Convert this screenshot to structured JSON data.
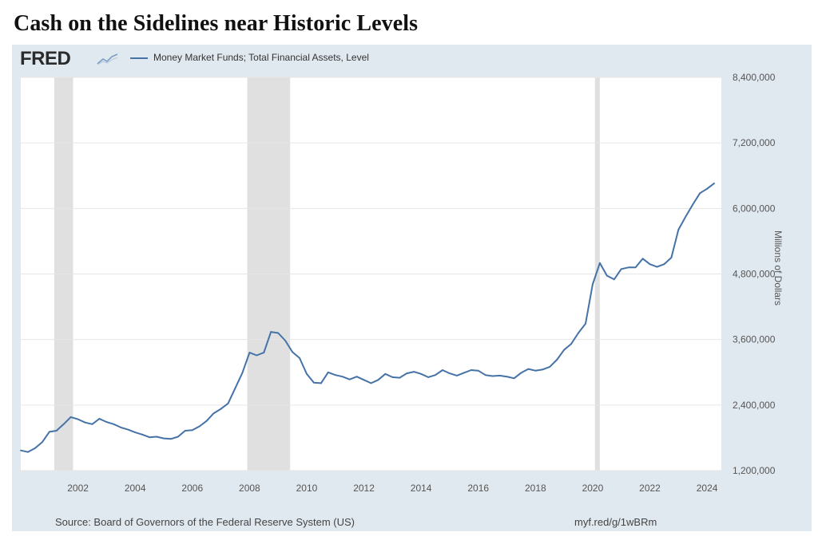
{
  "headline": "Cash on the Sidelines near Historic Levels",
  "fred": {
    "logo": "FRED",
    "logo_icon": "fred-line-chart-icon",
    "source": "Source: Board of Governors of the Federal Reserve System (US)",
    "shortlink": "myf.red/g/1wBRm"
  },
  "colors": {
    "panel": "#e1e9f0",
    "plot": "#ffffff",
    "series": "#4572a7",
    "recession": "#e0e0e0",
    "grid": "#e6e6e6"
  },
  "chart_data": {
    "type": "line",
    "title": "",
    "xlabel": "",
    "ylabel": "Millions of Dollars",
    "xlim": [
      2000.0,
      2024.5
    ],
    "ylim": [
      1200000,
      8400000
    ],
    "x_ticks": [
      2002,
      2004,
      2006,
      2008,
      2010,
      2012,
      2014,
      2016,
      2018,
      2020,
      2022,
      2024
    ],
    "y_ticks": [
      1200000,
      2400000,
      3600000,
      4800000,
      6000000,
      7200000,
      8400000
    ],
    "y_tick_labels": [
      "1,200,000",
      "2,400,000",
      "3,600,000",
      "4,800,000",
      "6,000,000",
      "7,200,000",
      "8,400,000"
    ],
    "grid": true,
    "legend_position": "top-left",
    "recession_bands": [
      [
        2001.17,
        2001.83
      ],
      [
        2007.92,
        2009.42
      ],
      [
        2020.08,
        2020.25
      ]
    ],
    "series": [
      {
        "name": "Money Market Funds; Total Financial Assets, Level",
        "color": "#4572a7",
        "x": [
          2000.0,
          2000.25,
          2000.5,
          2000.75,
          2001.0,
          2001.25,
          2001.5,
          2001.75,
          2002.0,
          2002.25,
          2002.5,
          2002.75,
          2003.0,
          2003.25,
          2003.5,
          2003.75,
          2004.0,
          2004.25,
          2004.5,
          2004.75,
          2005.0,
          2005.25,
          2005.5,
          2005.75,
          2006.0,
          2006.25,
          2006.5,
          2006.75,
          2007.0,
          2007.25,
          2007.5,
          2007.75,
          2008.0,
          2008.25,
          2008.5,
          2008.75,
          2009.0,
          2009.25,
          2009.5,
          2009.75,
          2010.0,
          2010.25,
          2010.5,
          2010.75,
          2011.0,
          2011.25,
          2011.5,
          2011.75,
          2012.0,
          2012.25,
          2012.5,
          2012.75,
          2013.0,
          2013.25,
          2013.5,
          2013.75,
          2014.0,
          2014.25,
          2014.5,
          2014.75,
          2015.0,
          2015.25,
          2015.5,
          2015.75,
          2016.0,
          2016.25,
          2016.5,
          2016.75,
          2017.0,
          2017.25,
          2017.5,
          2017.75,
          2018.0,
          2018.25,
          2018.5,
          2018.75,
          2019.0,
          2019.25,
          2019.5,
          2019.75,
          2020.0,
          2020.25,
          2020.5,
          2020.75,
          2021.0,
          2021.25,
          2021.5,
          2021.75,
          2022.0,
          2022.25,
          2022.5,
          2022.75,
          2023.0,
          2023.25,
          2023.5,
          2023.75,
          2024.0,
          2024.25
        ],
        "values": [
          1570000,
          1540000,
          1610000,
          1720000,
          1910000,
          1930000,
          2050000,
          2180000,
          2140000,
          2080000,
          2050000,
          2150000,
          2090000,
          2050000,
          1990000,
          1950000,
          1900000,
          1860000,
          1810000,
          1820000,
          1790000,
          1780000,
          1820000,
          1930000,
          1940000,
          2010000,
          2110000,
          2250000,
          2330000,
          2430000,
          2710000,
          2990000,
          3360000,
          3310000,
          3360000,
          3740000,
          3720000,
          3580000,
          3370000,
          3260000,
          2970000,
          2810000,
          2800000,
          3000000,
          2950000,
          2920000,
          2870000,
          2920000,
          2860000,
          2800000,
          2860000,
          2970000,
          2910000,
          2900000,
          2980000,
          3010000,
          2970000,
          2910000,
          2950000,
          3040000,
          2980000,
          2940000,
          2990000,
          3040000,
          3030000,
          2950000,
          2930000,
          2940000,
          2920000,
          2890000,
          2990000,
          3060000,
          3030000,
          3050000,
          3100000,
          3230000,
          3410000,
          3520000,
          3720000,
          3890000,
          4610000,
          5000000,
          4770000,
          4700000,
          4890000,
          4920000,
          4920000,
          5080000,
          4980000,
          4930000,
          4980000,
          5100000,
          5610000,
          5850000,
          6070000,
          6280000,
          6360000,
          6460000
        ]
      }
    ]
  }
}
